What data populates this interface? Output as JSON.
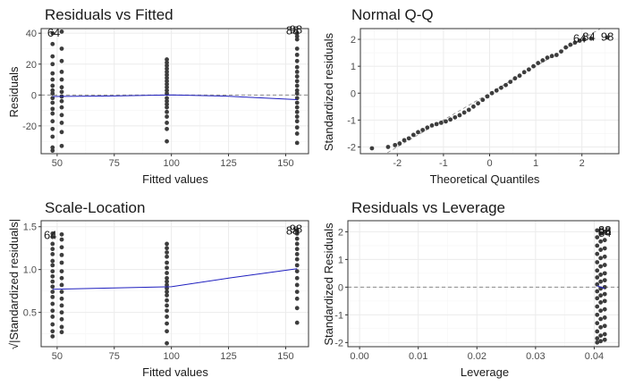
{
  "colors": {
    "point": "#3d3d3d",
    "smooth": "#1f1fbf",
    "grid_major": "#ebebeb",
    "grid_minor": "#f5f5f5",
    "panel_border": "#333333",
    "ref_line": "#8c8c8c",
    "background": "#ffffff"
  },
  "chart_data": [
    {
      "id": "rvf",
      "type": "scatter",
      "title": "Residuals vs Fitted",
      "xlabel": "Fitted values",
      "ylabel": "Residuals",
      "xlim": [
        43,
        160
      ],
      "ylim": [
        -38,
        43
      ],
      "xticks": [
        50,
        75,
        100,
        125,
        150
      ],
      "yticks": [
        -20,
        0,
        20,
        40
      ],
      "grid": true,
      "ref_line": {
        "kind": "h",
        "value": 0,
        "style": "dashed"
      },
      "points": [
        [
          48,
          40
        ],
        [
          48,
          33
        ],
        [
          48,
          25
        ],
        [
          48,
          20
        ],
        [
          48,
          14
        ],
        [
          48,
          10
        ],
        [
          48,
          6
        ],
        [
          48,
          3
        ],
        [
          48,
          1
        ],
        [
          48,
          -2
        ],
        [
          48,
          -5
        ],
        [
          48,
          -9
        ],
        [
          48,
          -12
        ],
        [
          48,
          -17
        ],
        [
          48,
          -22
        ],
        [
          48,
          -27
        ],
        [
          48,
          -34
        ],
        [
          48,
          -36
        ],
        [
          52,
          41
        ],
        [
          52,
          30
        ],
        [
          52,
          22
        ],
        [
          52,
          15
        ],
        [
          52,
          10
        ],
        [
          52,
          5
        ],
        [
          52,
          2
        ],
        [
          52,
          -1
        ],
        [
          52,
          -4
        ],
        [
          52,
          -8
        ],
        [
          52,
          -13
        ],
        [
          52,
          -18
        ],
        [
          52,
          -24
        ],
        [
          52,
          -33
        ],
        [
          98,
          23
        ],
        [
          98,
          21
        ],
        [
          98,
          19
        ],
        [
          98,
          17
        ],
        [
          98,
          15
        ],
        [
          98,
          13
        ],
        [
          98,
          11
        ],
        [
          98,
          9
        ],
        [
          98,
          7
        ],
        [
          98,
          5
        ],
        [
          98,
          3
        ],
        [
          98,
          1
        ],
        [
          98,
          -2
        ],
        [
          98,
          -4
        ],
        [
          98,
          -6
        ],
        [
          98,
          -8
        ],
        [
          98,
          -11
        ],
        [
          98,
          -14
        ],
        [
          98,
          -18
        ],
        [
          98,
          -22
        ],
        [
          98,
          -30
        ],
        [
          155,
          40
        ],
        [
          155,
          38
        ],
        [
          155,
          36
        ],
        [
          155,
          30
        ],
        [
          155,
          26
        ],
        [
          155,
          22
        ],
        [
          155,
          18
        ],
        [
          155,
          15
        ],
        [
          155,
          12
        ],
        [
          155,
          9
        ],
        [
          155,
          6
        ],
        [
          155,
          3
        ],
        [
          155,
          1
        ],
        [
          155,
          -2
        ],
        [
          155,
          -5
        ],
        [
          155,
          -8
        ],
        [
          155,
          -11
        ],
        [
          155,
          -14
        ],
        [
          155,
          -17
        ],
        [
          155,
          -21
        ],
        [
          155,
          -25
        ],
        [
          155,
          -31
        ]
      ],
      "smooth": [
        [
          48,
          -1
        ],
        [
          75,
          -0.6
        ],
        [
          100,
          0
        ],
        [
          125,
          -0.8
        ],
        [
          155,
          -3
        ]
      ],
      "annotations": [
        {
          "text": "64",
          "x": 48.5,
          "y": 40
        },
        {
          "text": "88",
          "x": 153,
          "y": 41.5
        },
        {
          "text": "98",
          "x": 154.5,
          "y": 42
        }
      ]
    },
    {
      "id": "qq",
      "type": "scatter",
      "title": "Normal Q-Q",
      "xlabel": "Theoretical Quantiles",
      "ylabel": "Standardized residuals",
      "xlim": [
        -2.8,
        2.8
      ],
      "ylim": [
        -2.25,
        2.4
      ],
      "xticks": [
        -2,
        -1,
        0,
        1,
        2
      ],
      "yticks": [
        -2,
        -1,
        0,
        1,
        2
      ],
      "grid": true,
      "ref_line": {
        "kind": "diag",
        "from": [
          -2.8,
          -2.8
        ],
        "to": [
          2.8,
          2.8
        ],
        "style": "dashed"
      },
      "points": [
        [
          -2.55,
          -2.05
        ],
        [
          -2.2,
          -2.0
        ],
        [
          -2.05,
          -1.93
        ],
        [
          -1.95,
          -1.87
        ],
        [
          -1.85,
          -1.75
        ],
        [
          -1.75,
          -1.68
        ],
        [
          -1.65,
          -1.55
        ],
        [
          -1.55,
          -1.45
        ],
        [
          -1.45,
          -1.37
        ],
        [
          -1.35,
          -1.28
        ],
        [
          -1.25,
          -1.2
        ],
        [
          -1.15,
          -1.15
        ],
        [
          -1.05,
          -1.1
        ],
        [
          -0.95,
          -1.05
        ],
        [
          -0.85,
          -0.98
        ],
        [
          -0.75,
          -0.9
        ],
        [
          -0.65,
          -0.82
        ],
        [
          -0.55,
          -0.72
        ],
        [
          -0.45,
          -0.62
        ],
        [
          -0.35,
          -0.5
        ],
        [
          -0.25,
          -0.38
        ],
        [
          -0.15,
          -0.25
        ],
        [
          -0.05,
          -0.12
        ],
        [
          0.05,
          0.0
        ],
        [
          0.15,
          0.1
        ],
        [
          0.25,
          0.2
        ],
        [
          0.35,
          0.3
        ],
        [
          0.45,
          0.42
        ],
        [
          0.55,
          0.55
        ],
        [
          0.65,
          0.65
        ],
        [
          0.75,
          0.78
        ],
        [
          0.85,
          0.88
        ],
        [
          0.95,
          1.0
        ],
        [
          1.05,
          1.12
        ],
        [
          1.15,
          1.22
        ],
        [
          1.25,
          1.32
        ],
        [
          1.35,
          1.38
        ],
        [
          1.45,
          1.42
        ],
        [
          1.55,
          1.55
        ],
        [
          1.65,
          1.7
        ],
        [
          1.75,
          1.8
        ],
        [
          1.85,
          1.88
        ],
        [
          1.95,
          1.95
        ],
        [
          2.05,
          2.0
        ],
        [
          2.2,
          2.03
        ],
        [
          2.55,
          2.07
        ]
      ],
      "annotations": [
        {
          "text": "64",
          "x": 1.95,
          "y": 2.02
        },
        {
          "text": "84",
          "x": 2.15,
          "y": 2.08
        },
        {
          "text": "98",
          "x": 2.55,
          "y": 2.08
        }
      ]
    },
    {
      "id": "sl",
      "type": "scatter",
      "title": "Scale-Location",
      "xlabel": "Fitted values",
      "ylabel": "√|Standardized residuals|",
      "xlim": [
        43,
        160
      ],
      "ylim": [
        0.1,
        1.57
      ],
      "xticks": [
        50,
        75,
        100,
        125,
        150
      ],
      "yticks": [
        0.5,
        1.0,
        1.5
      ],
      "grid": true,
      "points": [
        [
          48,
          1.42
        ],
        [
          48,
          1.38
        ],
        [
          48,
          1.3
        ],
        [
          48,
          1.24
        ],
        [
          48,
          1.18
        ],
        [
          48,
          1.1
        ],
        [
          48,
          1.05
        ],
        [
          48,
          0.98
        ],
        [
          48,
          0.92
        ],
        [
          48,
          0.86
        ],
        [
          48,
          0.8
        ],
        [
          48,
          0.74
        ],
        [
          48,
          0.68
        ],
        [
          48,
          0.6
        ],
        [
          48,
          0.52
        ],
        [
          48,
          0.45
        ],
        [
          48,
          0.36
        ],
        [
          48,
          0.28
        ],
        [
          48,
          0.22
        ],
        [
          52,
          1.41
        ],
        [
          52,
          1.35
        ],
        [
          52,
          1.26
        ],
        [
          52,
          1.17
        ],
        [
          52,
          1.08
        ],
        [
          52,
          0.98
        ],
        [
          52,
          0.9
        ],
        [
          52,
          0.82
        ],
        [
          52,
          0.74
        ],
        [
          52,
          0.66
        ],
        [
          52,
          0.58
        ],
        [
          52,
          0.5
        ],
        [
          52,
          0.42
        ],
        [
          52,
          0.33
        ],
        [
          52,
          0.27
        ],
        [
          98,
          1.3
        ],
        [
          98,
          1.25
        ],
        [
          98,
          1.2
        ],
        [
          98,
          1.15
        ],
        [
          98,
          1.08
        ],
        [
          98,
          1.02
        ],
        [
          98,
          0.96
        ],
        [
          98,
          0.9
        ],
        [
          98,
          0.86
        ],
        [
          98,
          0.82
        ],
        [
          98,
          0.78
        ],
        [
          98,
          0.74
        ],
        [
          98,
          0.7
        ],
        [
          98,
          0.64
        ],
        [
          98,
          0.58
        ],
        [
          98,
          0.52
        ],
        [
          98,
          0.45
        ],
        [
          98,
          0.37
        ],
        [
          98,
          0.28
        ],
        [
          98,
          0.14
        ],
        [
          155,
          1.46
        ],
        [
          155,
          1.44
        ],
        [
          155,
          1.42
        ],
        [
          155,
          1.36
        ],
        [
          155,
          1.3
        ],
        [
          155,
          1.24
        ],
        [
          155,
          1.18
        ],
        [
          155,
          1.12
        ],
        [
          155,
          1.05
        ],
        [
          155,
          0.98
        ],
        [
          155,
          0.9
        ],
        [
          155,
          0.82
        ],
        [
          155,
          0.74
        ],
        [
          155,
          0.66
        ],
        [
          155,
          0.55
        ],
        [
          155,
          0.38
        ]
      ],
      "smooth": [
        [
          48,
          0.77
        ],
        [
          75,
          0.785
        ],
        [
          100,
          0.8
        ],
        [
          125,
          0.9
        ],
        [
          155,
          1.01
        ]
      ],
      "annotations": [
        {
          "text": "64",
          "x": 47,
          "y": 1.4
        },
        {
          "text": "88",
          "x": 153,
          "y": 1.45
        },
        {
          "text": "98",
          "x": 154.5,
          "y": 1.47
        }
      ]
    },
    {
      "id": "rvl",
      "type": "scatter",
      "title": "Residuals vs Leverage",
      "xlabel": "Leverage",
      "ylabel": "Standardized Residuals",
      "xlim": [
        -0.002,
        0.0442
      ],
      "ylim": [
        -2.15,
        2.4
      ],
      "xticks": [
        0.0,
        0.01,
        0.02,
        0.03,
        0.04
      ],
      "xtick_labels": [
        "0.00",
        "0.01",
        "0.02",
        "0.03",
        "0.04"
      ],
      "yticks": [
        -2,
        -1,
        0,
        1,
        2
      ],
      "grid": true,
      "ref_line": {
        "kind": "h",
        "value": 0,
        "style": "dashed"
      },
      "points": [
        [
          0.0405,
          2.05
        ],
        [
          0.0405,
          1.8
        ],
        [
          0.0405,
          1.5
        ],
        [
          0.0405,
          1.2
        ],
        [
          0.0405,
          0.9
        ],
        [
          0.0405,
          0.6
        ],
        [
          0.0405,
          0.35
        ],
        [
          0.0405,
          0.1
        ],
        [
          0.0405,
          -0.15
        ],
        [
          0.0405,
          -0.4
        ],
        [
          0.0405,
          -0.7
        ],
        [
          0.0405,
          -1.0
        ],
        [
          0.0405,
          -1.3
        ],
        [
          0.0405,
          -1.6
        ],
        [
          0.0405,
          -1.85
        ],
        [
          0.0405,
          -2.0
        ],
        [
          0.0411,
          1.95
        ],
        [
          0.0411,
          1.65
        ],
        [
          0.0411,
          1.35
        ],
        [
          0.0411,
          1.05
        ],
        [
          0.0411,
          0.75
        ],
        [
          0.0411,
          0.45
        ],
        [
          0.0411,
          0.2
        ],
        [
          0.0411,
          -0.05
        ],
        [
          0.0411,
          -0.3
        ],
        [
          0.0411,
          -0.55
        ],
        [
          0.0411,
          -0.85
        ],
        [
          0.0411,
          -1.15
        ],
        [
          0.0411,
          -1.45
        ],
        [
          0.0411,
          -1.75
        ],
        [
          0.0411,
          -1.95
        ],
        [
          0.0418,
          2.0
        ],
        [
          0.0418,
          1.7
        ],
        [
          0.0418,
          1.4
        ],
        [
          0.0418,
          1.1
        ],
        [
          0.0418,
          0.8
        ],
        [
          0.0418,
          0.5
        ],
        [
          0.0418,
          0.25
        ],
        [
          0.0418,
          0.0
        ],
        [
          0.0418,
          -0.25
        ],
        [
          0.0418,
          -0.5
        ],
        [
          0.0418,
          -0.8
        ],
        [
          0.0418,
          -1.1
        ],
        [
          0.0418,
          -1.4
        ],
        [
          0.0418,
          -1.7
        ],
        [
          0.0418,
          -1.9
        ]
      ],
      "smooth": [
        [
          0.0405,
          0.05
        ],
        [
          0.0411,
          0.0
        ],
        [
          0.0418,
          -0.05
        ]
      ],
      "annotations": [
        {
          "text": "88",
          "x": 0.0418,
          "y": 2.05
        },
        {
          "text": "84",
          "x": 0.0418,
          "y": 1.95
        },
        {
          "text": "98",
          "x": 0.0418,
          "y": 2.0
        }
      ]
    }
  ]
}
